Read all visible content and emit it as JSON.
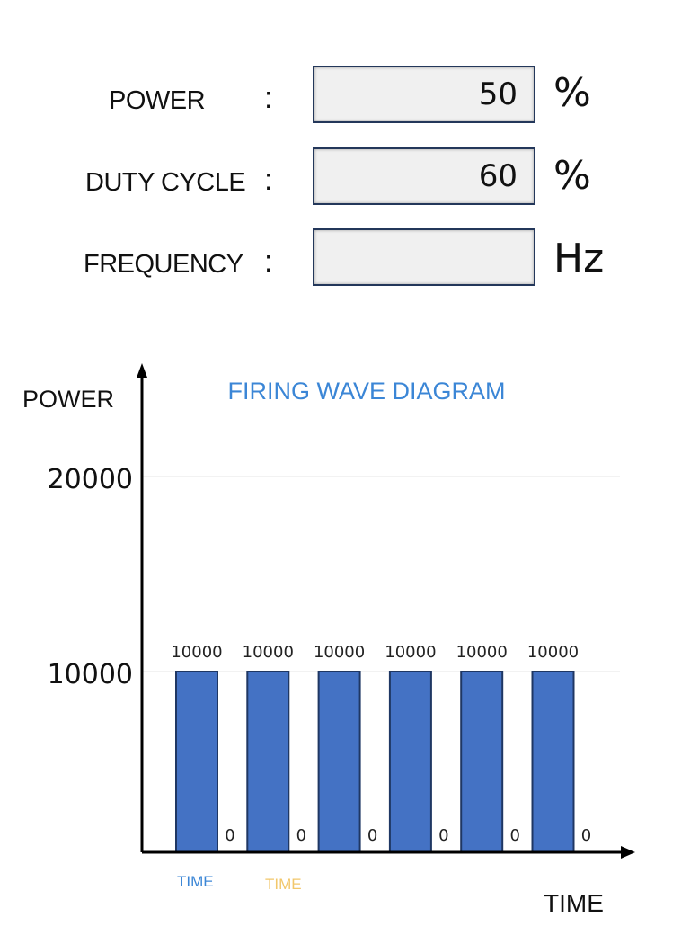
{
  "form": {
    "fields": [
      {
        "label": "POWER",
        "value": "50",
        "unit": "%"
      },
      {
        "label": "DUTY CYCLE",
        "value": "60",
        "unit": "%"
      },
      {
        "label": "FREQUENCY",
        "value": "",
        "unit": "Hz"
      }
    ],
    "separator": ":"
  },
  "chart_data": {
    "type": "bar",
    "title": "FIRING WAVE DIAGRAM",
    "ylabel": "POWER",
    "xlabel": "TIME",
    "yticks": [
      10000,
      20000
    ],
    "ylim": [
      0,
      20000
    ],
    "grid": true,
    "values": [
      10000,
      0,
      10000,
      0,
      10000,
      0,
      10000,
      0,
      10000,
      0,
      10000,
      0
    ],
    "annotations": [
      {
        "text": "TIME",
        "color": "#3b86d6"
      },
      {
        "text": "TIME",
        "color": "#f2c76b"
      }
    ],
    "bar_color": "#4472c4",
    "title_color": "#3b86d6"
  }
}
